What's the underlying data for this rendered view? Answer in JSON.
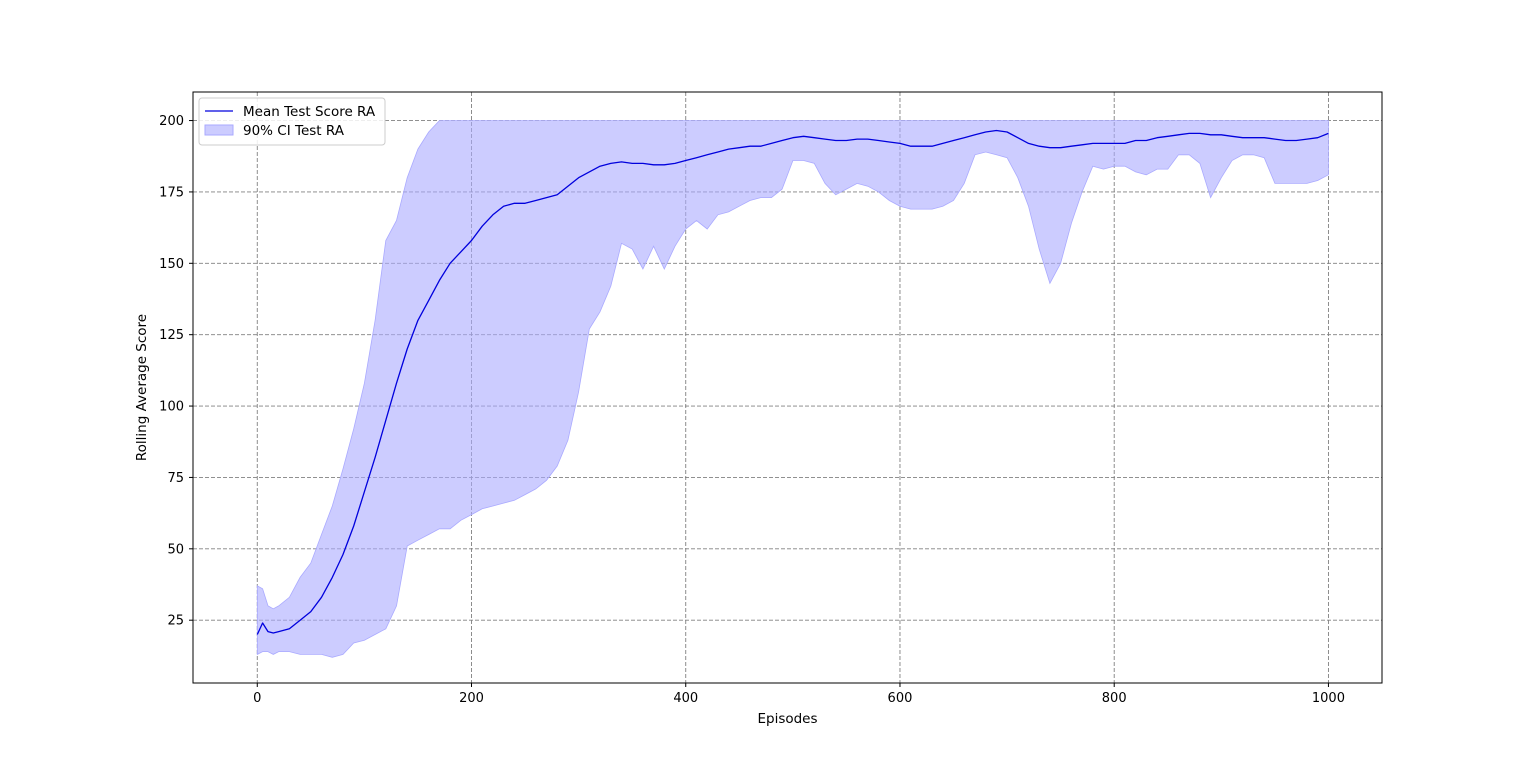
{
  "chart_data": {
    "type": "line",
    "title": "",
    "xlabel": "Episodes",
    "ylabel": "Rolling Average Score",
    "xlim": [
      -60,
      1050
    ],
    "ylim": [
      3,
      210
    ],
    "xticks": [
      0,
      200,
      400,
      600,
      800,
      1000
    ],
    "yticks": [
      25,
      50,
      75,
      100,
      125,
      150,
      175,
      200
    ],
    "xtick_labels": [
      "0",
      "200",
      "400",
      "600",
      "800",
      "1000"
    ],
    "ytick_labels": [
      "25",
      "50",
      "75",
      "100",
      "125",
      "150",
      "175",
      "200"
    ],
    "grid": true,
    "legend_position": "upper left",
    "colors": {
      "line": "#0000dd",
      "band": "#aaaaff",
      "grid": "#808080"
    },
    "series": [
      {
        "name": "Mean Test Score RA",
        "kind": "line",
        "x": [
          0,
          5,
          10,
          15,
          20,
          30,
          40,
          50,
          60,
          70,
          80,
          90,
          100,
          110,
          120,
          130,
          140,
          150,
          160,
          170,
          180,
          190,
          200,
          210,
          220,
          230,
          240,
          250,
          260,
          270,
          280,
          290,
          300,
          310,
          320,
          330,
          340,
          350,
          360,
          370,
          380,
          390,
          400,
          410,
          420,
          430,
          440,
          450,
          460,
          470,
          480,
          490,
          500,
          510,
          520,
          530,
          540,
          550,
          560,
          570,
          580,
          590,
          600,
          610,
          620,
          630,
          640,
          650,
          660,
          670,
          680,
          690,
          700,
          710,
          720,
          730,
          740,
          750,
          760,
          770,
          780,
          790,
          800,
          810,
          820,
          830,
          840,
          850,
          860,
          870,
          880,
          890,
          900,
          910,
          920,
          930,
          940,
          950,
          960,
          970,
          980,
          990,
          1000
        ],
        "y": [
          20,
          24,
          21,
          20.5,
          21,
          22,
          25,
          28,
          33,
          40,
          48,
          58,
          70,
          82,
          95,
          108,
          120,
          130,
          137,
          144,
          150,
          154,
          158,
          163,
          167,
          170,
          171,
          171,
          172,
          173,
          174,
          177,
          180,
          182,
          184,
          185,
          185.5,
          185,
          185,
          184.5,
          184.5,
          185,
          186,
          187,
          188,
          189,
          190,
          190.5,
          191,
          191,
          192,
          193,
          194,
          194.5,
          194,
          193.5,
          193,
          193,
          193.5,
          193.5,
          193,
          192.5,
          192,
          191,
          191,
          191,
          192,
          193,
          194,
          195,
          196,
          196.5,
          196,
          194,
          192,
          191,
          190.5,
          190.5,
          191,
          191.5,
          192,
          192,
          192,
          192,
          193,
          193,
          194,
          194.5,
          195,
          195.5,
          195.5,
          195,
          195,
          194.5,
          194,
          194,
          194,
          193.5,
          193,
          193,
          193.5,
          194,
          195.5
        ]
      },
      {
        "name": "90% CI Test RA",
        "kind": "band",
        "x": [
          0,
          5,
          10,
          15,
          20,
          30,
          40,
          50,
          60,
          70,
          80,
          90,
          100,
          110,
          120,
          130,
          140,
          150,
          160,
          170,
          180,
          190,
          200,
          210,
          220,
          230,
          240,
          250,
          260,
          270,
          280,
          290,
          300,
          310,
          320,
          330,
          340,
          350,
          360,
          370,
          380,
          390,
          400,
          410,
          420,
          430,
          440,
          450,
          460,
          470,
          480,
          490,
          500,
          510,
          520,
          530,
          540,
          550,
          560,
          570,
          580,
          590,
          600,
          610,
          620,
          630,
          640,
          650,
          660,
          670,
          680,
          690,
          700,
          710,
          720,
          730,
          740,
          750,
          760,
          770,
          780,
          790,
          800,
          810,
          820,
          830,
          840,
          850,
          860,
          870,
          880,
          890,
          900,
          910,
          920,
          930,
          940,
          950,
          960,
          970,
          980,
          990,
          1000
        ],
        "upper": [
          37,
          36,
          30,
          29,
          30,
          33,
          40,
          45,
          55,
          65,
          78,
          92,
          108,
          130,
          158,
          165,
          180,
          190,
          196,
          200,
          200,
          200,
          200,
          200,
          200,
          200,
          200,
          200,
          200,
          200,
          200,
          200,
          200,
          200,
          200,
          200,
          200,
          200,
          200,
          200,
          200,
          200,
          200,
          200,
          200,
          200,
          200,
          200,
          200,
          200,
          200,
          200,
          200,
          200,
          200,
          200,
          200,
          200,
          200,
          200,
          200,
          200,
          200,
          200,
          200,
          200,
          200,
          200,
          200,
          200,
          200,
          200,
          200,
          200,
          200,
          200,
          200,
          200,
          200,
          200,
          200,
          200,
          200,
          200,
          200,
          200,
          200,
          200,
          200,
          200,
          200,
          200,
          200,
          200,
          200,
          200,
          200,
          200,
          200,
          200,
          200,
          200,
          200
        ],
        "lower": [
          13,
          14,
          14,
          13,
          14,
          14,
          13,
          13,
          13,
          12,
          13,
          17,
          18,
          20,
          22,
          30,
          51,
          53,
          55,
          57,
          57,
          60,
          62,
          64,
          65,
          66,
          67,
          69,
          71,
          74,
          79,
          88,
          105,
          127,
          133,
          142,
          157,
          155,
          148,
          156,
          148,
          156,
          162,
          165,
          162,
          167,
          168,
          170,
          172,
          173,
          173,
          176,
          186,
          186,
          185,
          178,
          174,
          176,
          178,
          177,
          175,
          172,
          170,
          169,
          169,
          169,
          170,
          172,
          178,
          188,
          189,
          188,
          187,
          180,
          170,
          155,
          143,
          150,
          164,
          175,
          184,
          183,
          184,
          184,
          182,
          181,
          183,
          183,
          188,
          188,
          185,
          173,
          180,
          186,
          188,
          188,
          187,
          178,
          178,
          178,
          178,
          179,
          181
        ]
      }
    ]
  }
}
